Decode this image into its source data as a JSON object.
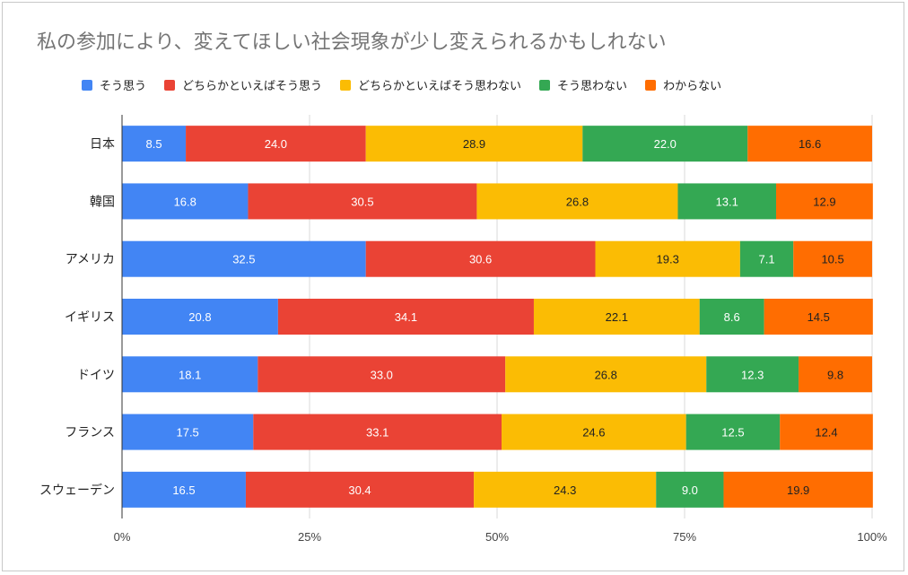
{
  "chart_data": {
    "type": "bar",
    "orientation": "horizontal",
    "stacked": "percent",
    "title": "私の参加により、変えてほしい社会現象が少し変えられるかもしれない",
    "categories": [
      "日本",
      "韓国",
      "アメリカ",
      "イギリス",
      "ドイツ",
      "フランス",
      "スウェーデン"
    ],
    "series": [
      {
        "name": "そう思う",
        "color": "#4285f4",
        "label_color": "#ffffff",
        "values": [
          8.5,
          16.8,
          32.5,
          20.8,
          18.1,
          17.5,
          16.5
        ]
      },
      {
        "name": "どちらかといえばそう思う",
        "color": "#ea4335",
        "label_color": "#ffffff",
        "values": [
          24.0,
          30.5,
          30.6,
          34.1,
          33.0,
          33.1,
          30.4
        ]
      },
      {
        "name": "どちらかといえばそう思わない",
        "color": "#fbbc04",
        "label_color": "#222222",
        "values": [
          28.9,
          26.8,
          19.3,
          22.1,
          26.8,
          24.6,
          24.3
        ]
      },
      {
        "name": "そう思わない",
        "color": "#34a853",
        "label_color": "#ffffff",
        "values": [
          22.0,
          13.1,
          7.1,
          8.6,
          12.3,
          12.5,
          9.0
        ]
      },
      {
        "name": "わからない",
        "color": "#ff6d01",
        "label_color": "#222222",
        "values": [
          16.6,
          12.9,
          10.5,
          14.5,
          9.8,
          12.4,
          19.9
        ]
      }
    ],
    "xlim": [
      0,
      100
    ],
    "xticks": [
      "0%",
      "25%",
      "50%",
      "75%",
      "100%"
    ],
    "grid": true,
    "legend_position": "top"
  }
}
